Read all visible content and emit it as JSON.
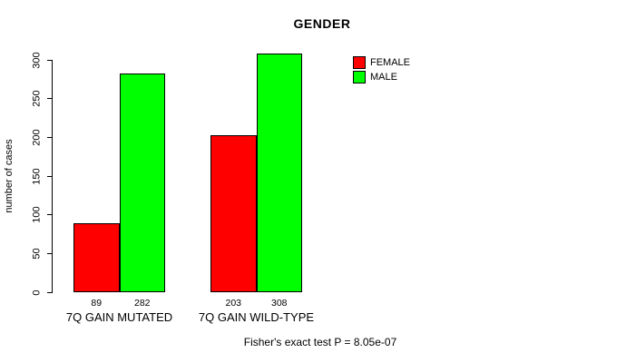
{
  "chart_data": {
    "type": "bar",
    "title": "GENDER",
    "ylabel": "number of cases",
    "xlabel": "",
    "ylim": [
      0,
      300
    ],
    "yticks": [
      0,
      50,
      100,
      150,
      200,
      250,
      300
    ],
    "grid": false,
    "legend_position": "top-right-inside",
    "categories": [
      "7Q GAIN MUTATED",
      "7Q GAIN WILD-TYPE"
    ],
    "series": [
      {
        "name": "FEMALE",
        "color": "#FF0000",
        "values": [
          89,
          203
        ]
      },
      {
        "name": "MALE",
        "color": "#00FF00",
        "values": [
          282,
          308
        ]
      }
    ],
    "bar_value_labels": [
      [
        "89",
        "282"
      ],
      [
        "203",
        "308"
      ]
    ]
  },
  "footer": {
    "caption": "Fisher's exact test P = 8.05e-07"
  }
}
